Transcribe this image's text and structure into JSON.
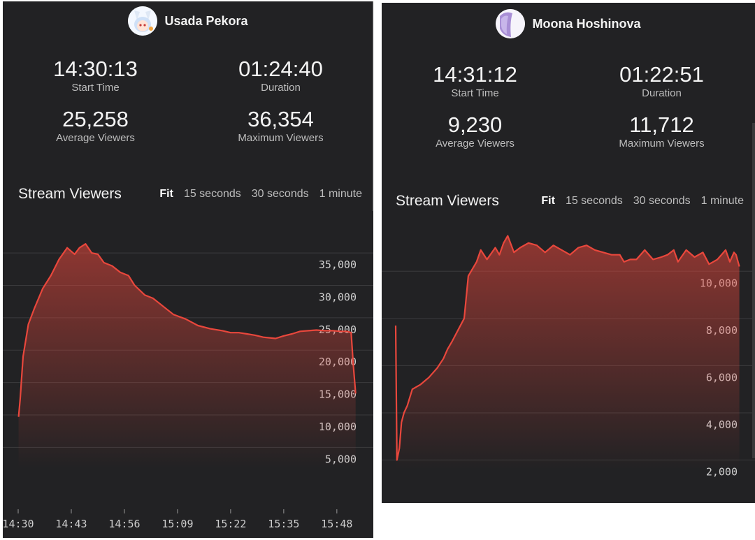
{
  "colors": {
    "panel_bg": "#222224",
    "line": "#e8473c",
    "grid": "#3b3b3d",
    "text": "#e8e8e8",
    "muted": "#bdbdbd"
  },
  "range_options": [
    "Fit",
    "15 seconds",
    "30 seconds",
    "1 minute"
  ],
  "panels": [
    {
      "streamer": "Usada Pekora",
      "avatar": "pekora-avatar",
      "stats": {
        "start_time": "14:30:13",
        "start_time_label": "Start Time",
        "duration": "01:24:40",
        "duration_label": "Duration",
        "average_viewers": "25,258",
        "average_viewers_label": "Average Viewers",
        "maximum_viewers": "36,354",
        "maximum_viewers_label": "Maximum Viewers"
      },
      "chart_title": "Stream Viewers",
      "active_range": "Fit"
    },
    {
      "streamer": "Moona Hoshinova",
      "avatar": "moona-avatar",
      "stats": {
        "start_time": "14:31:12",
        "start_time_label": "Start Time",
        "duration": "01:22:51",
        "duration_label": "Duration",
        "average_viewers": "9,230",
        "average_viewers_label": "Average Viewers",
        "maximum_viewers": "11,712",
        "maximum_viewers_label": "Maximum Viewers"
      },
      "chart_title": "Stream Viewers",
      "active_range": "Fit"
    }
  ],
  "chart_data": [
    {
      "type": "area",
      "title": "Stream Viewers",
      "x_unit": "minutes since 14:30",
      "x_ticks": [
        0,
        13,
        26,
        39,
        52,
        65,
        78
      ],
      "x_tick_labels": [
        "14:30",
        "14:43",
        "14:56",
        "15:09",
        "15:22",
        "15:35",
        "15:48"
      ],
      "y_ticks": [
        5000,
        10000,
        15000,
        20000,
        25000,
        30000,
        35000
      ],
      "y_tick_labels": [
        "5,000",
        "10,000",
        "15,000",
        "20,000",
        "25,000",
        "30,000",
        "35,000"
      ],
      "ylim": [
        1800,
        40400
      ],
      "xlim": [
        0,
        83.5
      ],
      "grid": true,
      "series": [
        {
          "x": [
            0.1,
            0.5,
            1.2,
            2.5,
            4.0,
            6.0,
            8.0,
            10.0,
            12.0,
            13.8,
            15.0,
            16.5,
            18.0,
            19.5,
            21.0,
            23.0,
            25.0,
            27.0,
            28.5,
            31.0,
            33.0,
            35.0,
            38.0,
            41.0,
            44.0,
            47.0,
            50.0,
            52.0,
            54.0,
            56.0,
            58.0,
            60.0,
            63.0,
            65.0,
            67.0,
            69.0,
            71.0,
            73.0,
            75.0,
            77.0,
            79.0,
            80.5,
            81.5,
            82.0,
            82.6
          ],
          "y": [
            9700,
            12500,
            19000,
            24000,
            26500,
            29500,
            31500,
            34000,
            35800,
            34800,
            35800,
            36400,
            35000,
            34800,
            33500,
            33000,
            32000,
            31500,
            30000,
            28500,
            28000,
            27000,
            25500,
            24800,
            23800,
            23300,
            23000,
            22700,
            22700,
            22500,
            22300,
            22000,
            21800,
            22200,
            22500,
            22900,
            23000,
            23100,
            23000,
            23000,
            22900,
            22900,
            22700,
            18000,
            13300
          ]
        }
      ]
    },
    {
      "type": "area",
      "title": "Stream Viewers",
      "x_unit": "minutes since 14:31",
      "y_ticks": [
        2000,
        4000,
        6000,
        8000,
        10000
      ],
      "y_tick_labels": [
        "2,000",
        "4,000",
        "6,000",
        "8,000",
        "10,000"
      ],
      "ylim": [
        1600,
        12200
      ],
      "xlim": [
        0,
        83.2
      ],
      "grid": true,
      "series": [
        {
          "x": [
            0.0,
            0.3,
            0.9,
            1.4,
            2.0,
            2.8,
            4.0,
            6.0,
            8.0,
            10.0,
            11.5,
            12.5,
            13.5,
            15.0,
            16.5,
            17.5,
            19.5,
            20.5,
            22.0,
            24.0,
            25.0,
            26.0,
            27.0,
            28.5,
            30.0,
            32.0,
            34.0,
            36.0,
            38.0,
            40.0,
            42.0,
            44.0,
            46.0,
            48.0,
            50.0,
            52.0,
            54.0,
            55.0,
            56.5,
            58.0,
            60.0,
            62.0,
            64.0,
            65.5,
            67.0,
            68.0,
            70.0,
            72.0,
            74.0,
            75.5,
            77.5,
            79.5,
            80.5,
            81.5,
            82.0,
            82.8
          ],
          "y": [
            7700,
            2000,
            2500,
            3600,
            4000,
            4300,
            5000,
            5200,
            5500,
            5900,
            6300,
            6700,
            7000,
            7500,
            8000,
            9800,
            10400,
            10900,
            10500,
            11000,
            10700,
            11200,
            11500,
            10800,
            11000,
            11200,
            11100,
            10800,
            11100,
            10900,
            10700,
            11000,
            11100,
            10900,
            10800,
            10700,
            10700,
            10400,
            10500,
            10500,
            10900,
            10500,
            10600,
            10700,
            10900,
            10400,
            10900,
            10600,
            10800,
            10300,
            10500,
            10900,
            10400,
            10800,
            10700,
            10200
          ]
        }
      ]
    }
  ]
}
